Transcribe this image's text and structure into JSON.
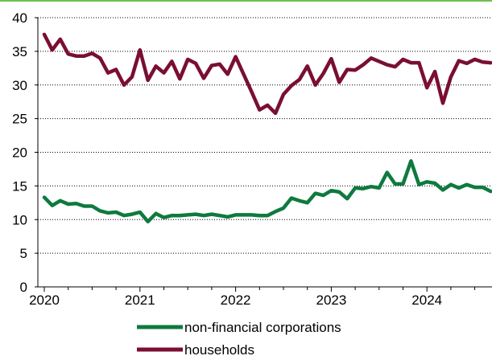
{
  "chart_data": {
    "type": "line",
    "title": "",
    "xlabel": "",
    "ylabel": "",
    "ylim": [
      0,
      40
    ],
    "y_ticks": [
      "0",
      "5",
      "10",
      "15",
      "20",
      "25",
      "30",
      "35",
      "40"
    ],
    "x_tick_labels": [
      "2020",
      "2021",
      "2022",
      "2023",
      "2024"
    ],
    "x_start": "2020-01",
    "x_end": "2024-09",
    "grid": "horizontal",
    "legend_position": "bottom",
    "colors": {
      "frame_top": "#6dbf4f",
      "grid": "#000000"
    },
    "series": [
      {
        "name": "non-financial corporations",
        "color": "#0e7a3e",
        "x": [
          "2020-01",
          "2020-02",
          "2020-03",
          "2020-04",
          "2020-05",
          "2020-06",
          "2020-07",
          "2020-08",
          "2020-09",
          "2020-10",
          "2020-11",
          "2020-12",
          "2021-01",
          "2021-02",
          "2021-03",
          "2021-04",
          "2021-05",
          "2021-06",
          "2021-07",
          "2021-08",
          "2021-09",
          "2021-10",
          "2021-11",
          "2021-12",
          "2022-01",
          "2022-02",
          "2022-03",
          "2022-04",
          "2022-05",
          "2022-06",
          "2022-07",
          "2022-08",
          "2022-09",
          "2022-10",
          "2022-11",
          "2022-12",
          "2023-01",
          "2023-02",
          "2023-03",
          "2023-04",
          "2023-05",
          "2023-06",
          "2023-07",
          "2023-08",
          "2023-09",
          "2023-10",
          "2023-11",
          "2023-12",
          "2024-01",
          "2024-02",
          "2024-03",
          "2024-04",
          "2024-05",
          "2024-06",
          "2024-07",
          "2024-08",
          "2024-09"
        ],
        "values": [
          13.3,
          12.1,
          12.8,
          12.3,
          12.4,
          12.0,
          12.0,
          11.3,
          11.0,
          11.1,
          10.6,
          10.8,
          11.1,
          9.7,
          10.9,
          10.3,
          10.6,
          10.6,
          10.7,
          10.8,
          10.6,
          10.8,
          10.6,
          10.4,
          10.7,
          10.7,
          10.7,
          10.6,
          10.6,
          11.2,
          11.7,
          13.2,
          12.8,
          12.5,
          13.9,
          13.6,
          14.3,
          14.1,
          13.1,
          14.7,
          14.6,
          14.9,
          14.7,
          17.0,
          15.3,
          15.3,
          18.7,
          15.2,
          15.6,
          15.4,
          14.4,
          15.2,
          14.7,
          15.2,
          14.8,
          14.8,
          14.2
        ]
      },
      {
        "name": "households",
        "color": "#7a0e33",
        "x": [
          "2020-01",
          "2020-02",
          "2020-03",
          "2020-04",
          "2020-05",
          "2020-06",
          "2020-07",
          "2020-08",
          "2020-09",
          "2020-10",
          "2020-11",
          "2020-12",
          "2021-01",
          "2021-02",
          "2021-03",
          "2021-04",
          "2021-05",
          "2021-06",
          "2021-07",
          "2021-08",
          "2021-09",
          "2021-10",
          "2021-11",
          "2021-12",
          "2022-01",
          "2022-02",
          "2022-03",
          "2022-04",
          "2022-05",
          "2022-06",
          "2022-07",
          "2022-08",
          "2022-09",
          "2022-10",
          "2022-11",
          "2022-12",
          "2023-01",
          "2023-02",
          "2023-03",
          "2023-04",
          "2023-05",
          "2023-06",
          "2023-07",
          "2023-08",
          "2023-09",
          "2023-10",
          "2023-11",
          "2023-12",
          "2024-01",
          "2024-02",
          "2024-03",
          "2024-04",
          "2024-05",
          "2024-06",
          "2024-07",
          "2024-08",
          "2024-09"
        ],
        "values": [
          37.5,
          35.2,
          36.8,
          34.6,
          34.3,
          34.3,
          34.7,
          34.0,
          31.8,
          32.3,
          30.0,
          31.2,
          35.2,
          30.7,
          32.8,
          31.8,
          33.5,
          30.9,
          33.8,
          33.2,
          31.0,
          32.9,
          33.1,
          31.6,
          34.2,
          31.6,
          29.0,
          26.3,
          27.0,
          25.8,
          28.6,
          29.9,
          30.8,
          32.8,
          30.0,
          31.7,
          33.9,
          30.4,
          32.3,
          32.2,
          33.0,
          34.0,
          33.5,
          33.0,
          32.7,
          33.8,
          33.3,
          33.3,
          29.6,
          32.0,
          27.3,
          31.2,
          33.6,
          33.2,
          33.8,
          33.4,
          33.3
        ]
      }
    ]
  }
}
